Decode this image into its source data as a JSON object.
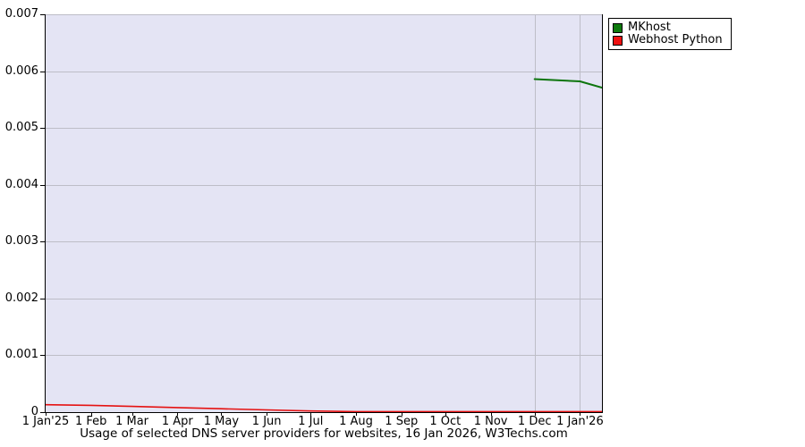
{
  "legend": {
    "items": [
      {
        "label": "MKhost",
        "color": "#0d7a0d"
      },
      {
        "label": "Webhost Python",
        "color": "#ee1111"
      }
    ]
  },
  "chart_data": {
    "type": "line",
    "title": "Usage of selected DNS server providers for websites, 16 Jan 2026, W3Techs.com",
    "ylabel": "",
    "xlabel": "",
    "ylim": [
      0,
      0.007
    ],
    "x_span_days": 380,
    "grid": "horizontal",
    "legend_position": "top-right-outside",
    "plot_bg": "#e4e4f4",
    "grid_color": "#bdbdc7",
    "axis_color": "#000000",
    "y_ticks": [
      {
        "label": "0",
        "value": 0
      },
      {
        "label": "0.001",
        "value": 0.001
      },
      {
        "label": "0.002",
        "value": 0.002
      },
      {
        "label": "0.003",
        "value": 0.003
      },
      {
        "label": "0.004",
        "value": 0.004
      },
      {
        "label": "0.005",
        "value": 0.005
      },
      {
        "label": "0.006",
        "value": 0.006
      },
      {
        "label": "0.007",
        "value": 0.007
      }
    ],
    "x_ticks": [
      {
        "label": "1 Jan'25",
        "day": 0
      },
      {
        "label": "1 Feb",
        "day": 31
      },
      {
        "label": "1 Mar",
        "day": 59
      },
      {
        "label": "1 Apr",
        "day": 90
      },
      {
        "label": "1 May",
        "day": 120
      },
      {
        "label": "1 Jun",
        "day": 151
      },
      {
        "label": "1 Jul",
        "day": 181
      },
      {
        "label": "1 Aug",
        "day": 212
      },
      {
        "label": "1 Sep",
        "day": 243
      },
      {
        "label": "1 Oct",
        "day": 273
      },
      {
        "label": "1 Nov",
        "day": 304
      },
      {
        "label": "1 Dec",
        "day": 334
      },
      {
        "label": "1 Jan'26",
        "day": 365
      }
    ],
    "vertical_gridline_days": [
      334,
      365
    ],
    "series": [
      {
        "name": "MKhost",
        "color": "#0d750d",
        "stroke_width": 2,
        "points": [
          [
            334,
            0.00586
          ],
          [
            365,
            0.00582
          ],
          [
            380,
            0.00571
          ]
        ]
      },
      {
        "name": "Webhost Python",
        "color": "#e51212",
        "stroke_width": 1.6,
        "points": [
          [
            0,
            0.00013
          ],
          [
            31,
            0.00012
          ],
          [
            59,
            0.0001
          ],
          [
            90,
            8e-05
          ],
          [
            120,
            6e-05
          ],
          [
            151,
            4e-05
          ],
          [
            181,
            2e-05
          ],
          [
            212,
            1e-05
          ],
          [
            243,
            1e-05
          ],
          [
            273,
            1e-05
          ],
          [
            304,
            1e-05
          ],
          [
            334,
            1e-05
          ],
          [
            365,
            1e-05
          ],
          [
            380,
            1e-05
          ]
        ]
      }
    ]
  }
}
